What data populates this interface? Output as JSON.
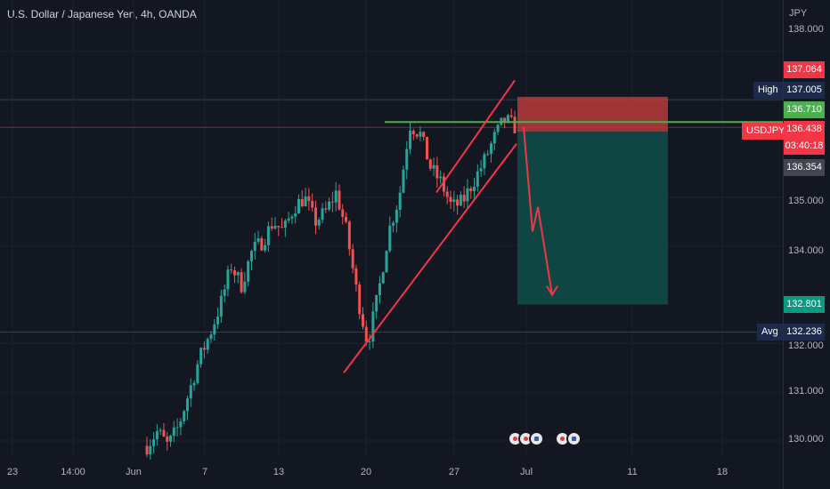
{
  "header": {
    "title": "U.S. Dollar / Japanese Yen, 4h, OANDA",
    "currency": "JPY"
  },
  "colors": {
    "background": "#131722",
    "up": "#26a69a",
    "down": "#ef5350",
    "green_line": "#4caf50",
    "stop_zone": "#b83a3a",
    "target_zone": "#0f4a46",
    "avg_tag": "#1e2a4a"
  },
  "price_axis": {
    "ticks": [
      "138.000",
      "135.000",
      "134.000",
      "132.000",
      "131.000",
      "130.000"
    ],
    "labels": {
      "stop": "137.064",
      "high_label": "High",
      "high": "137.005",
      "entry": "136.710",
      "symbol": "USDJPY",
      "current": "136.438",
      "countdown": "03:40:18",
      "session": "136.354",
      "target": "132.801",
      "avg_label": "Avg",
      "avg": "132.236"
    }
  },
  "time_axis": {
    "ticks": [
      "23",
      "14:00",
      "Jun",
      "7",
      "13",
      "20",
      "27",
      "Jul",
      "11",
      "18"
    ]
  },
  "chart_data": {
    "type": "candlestick",
    "title": "U.S. Dollar / Japanese Yen, 4h, OANDA",
    "ylim": [
      129.9,
      138.2
    ],
    "y_ticks": [
      130,
      131,
      132,
      134,
      135,
      138
    ],
    "x_ticks": [
      "23",
      "14:00",
      "Jun",
      "7",
      "13",
      "20",
      "27",
      "Jul",
      "11",
      "18"
    ],
    "close_path": [
      129.9,
      130.2,
      129.9,
      130.3,
      131.0,
      131.7,
      132.2,
      132.8,
      133.6,
      133.2,
      133.9,
      134.1,
      134.5,
      134.3,
      134.8,
      135.0,
      134.5,
      134.7,
      135.1,
      134.3,
      133.0,
      132.0,
      133.0,
      134.3,
      135.0,
      136.5,
      136.3,
      135.6,
      135.3,
      134.8,
      134.9,
      135.3,
      135.7,
      136.2,
      136.6,
      136.45
    ],
    "levels": {
      "stop": 137.064,
      "high": 137.005,
      "entry": 136.71,
      "current": 136.438,
      "session": 136.354,
      "target": 132.801,
      "avg": 132.236
    },
    "short_position": {
      "entry": 136.71,
      "stop": 137.064,
      "target": 132.801
    },
    "projection": [
      136.45,
      134.3,
      134.8,
      133.0
    ],
    "rising_wedge": {
      "lower": [
        [
          131.4,
          0
        ],
        [
          136.1,
          1
        ]
      ],
      "upper": [
        [
          135.1,
          0
        ],
        [
          137.4,
          1
        ]
      ]
    }
  }
}
